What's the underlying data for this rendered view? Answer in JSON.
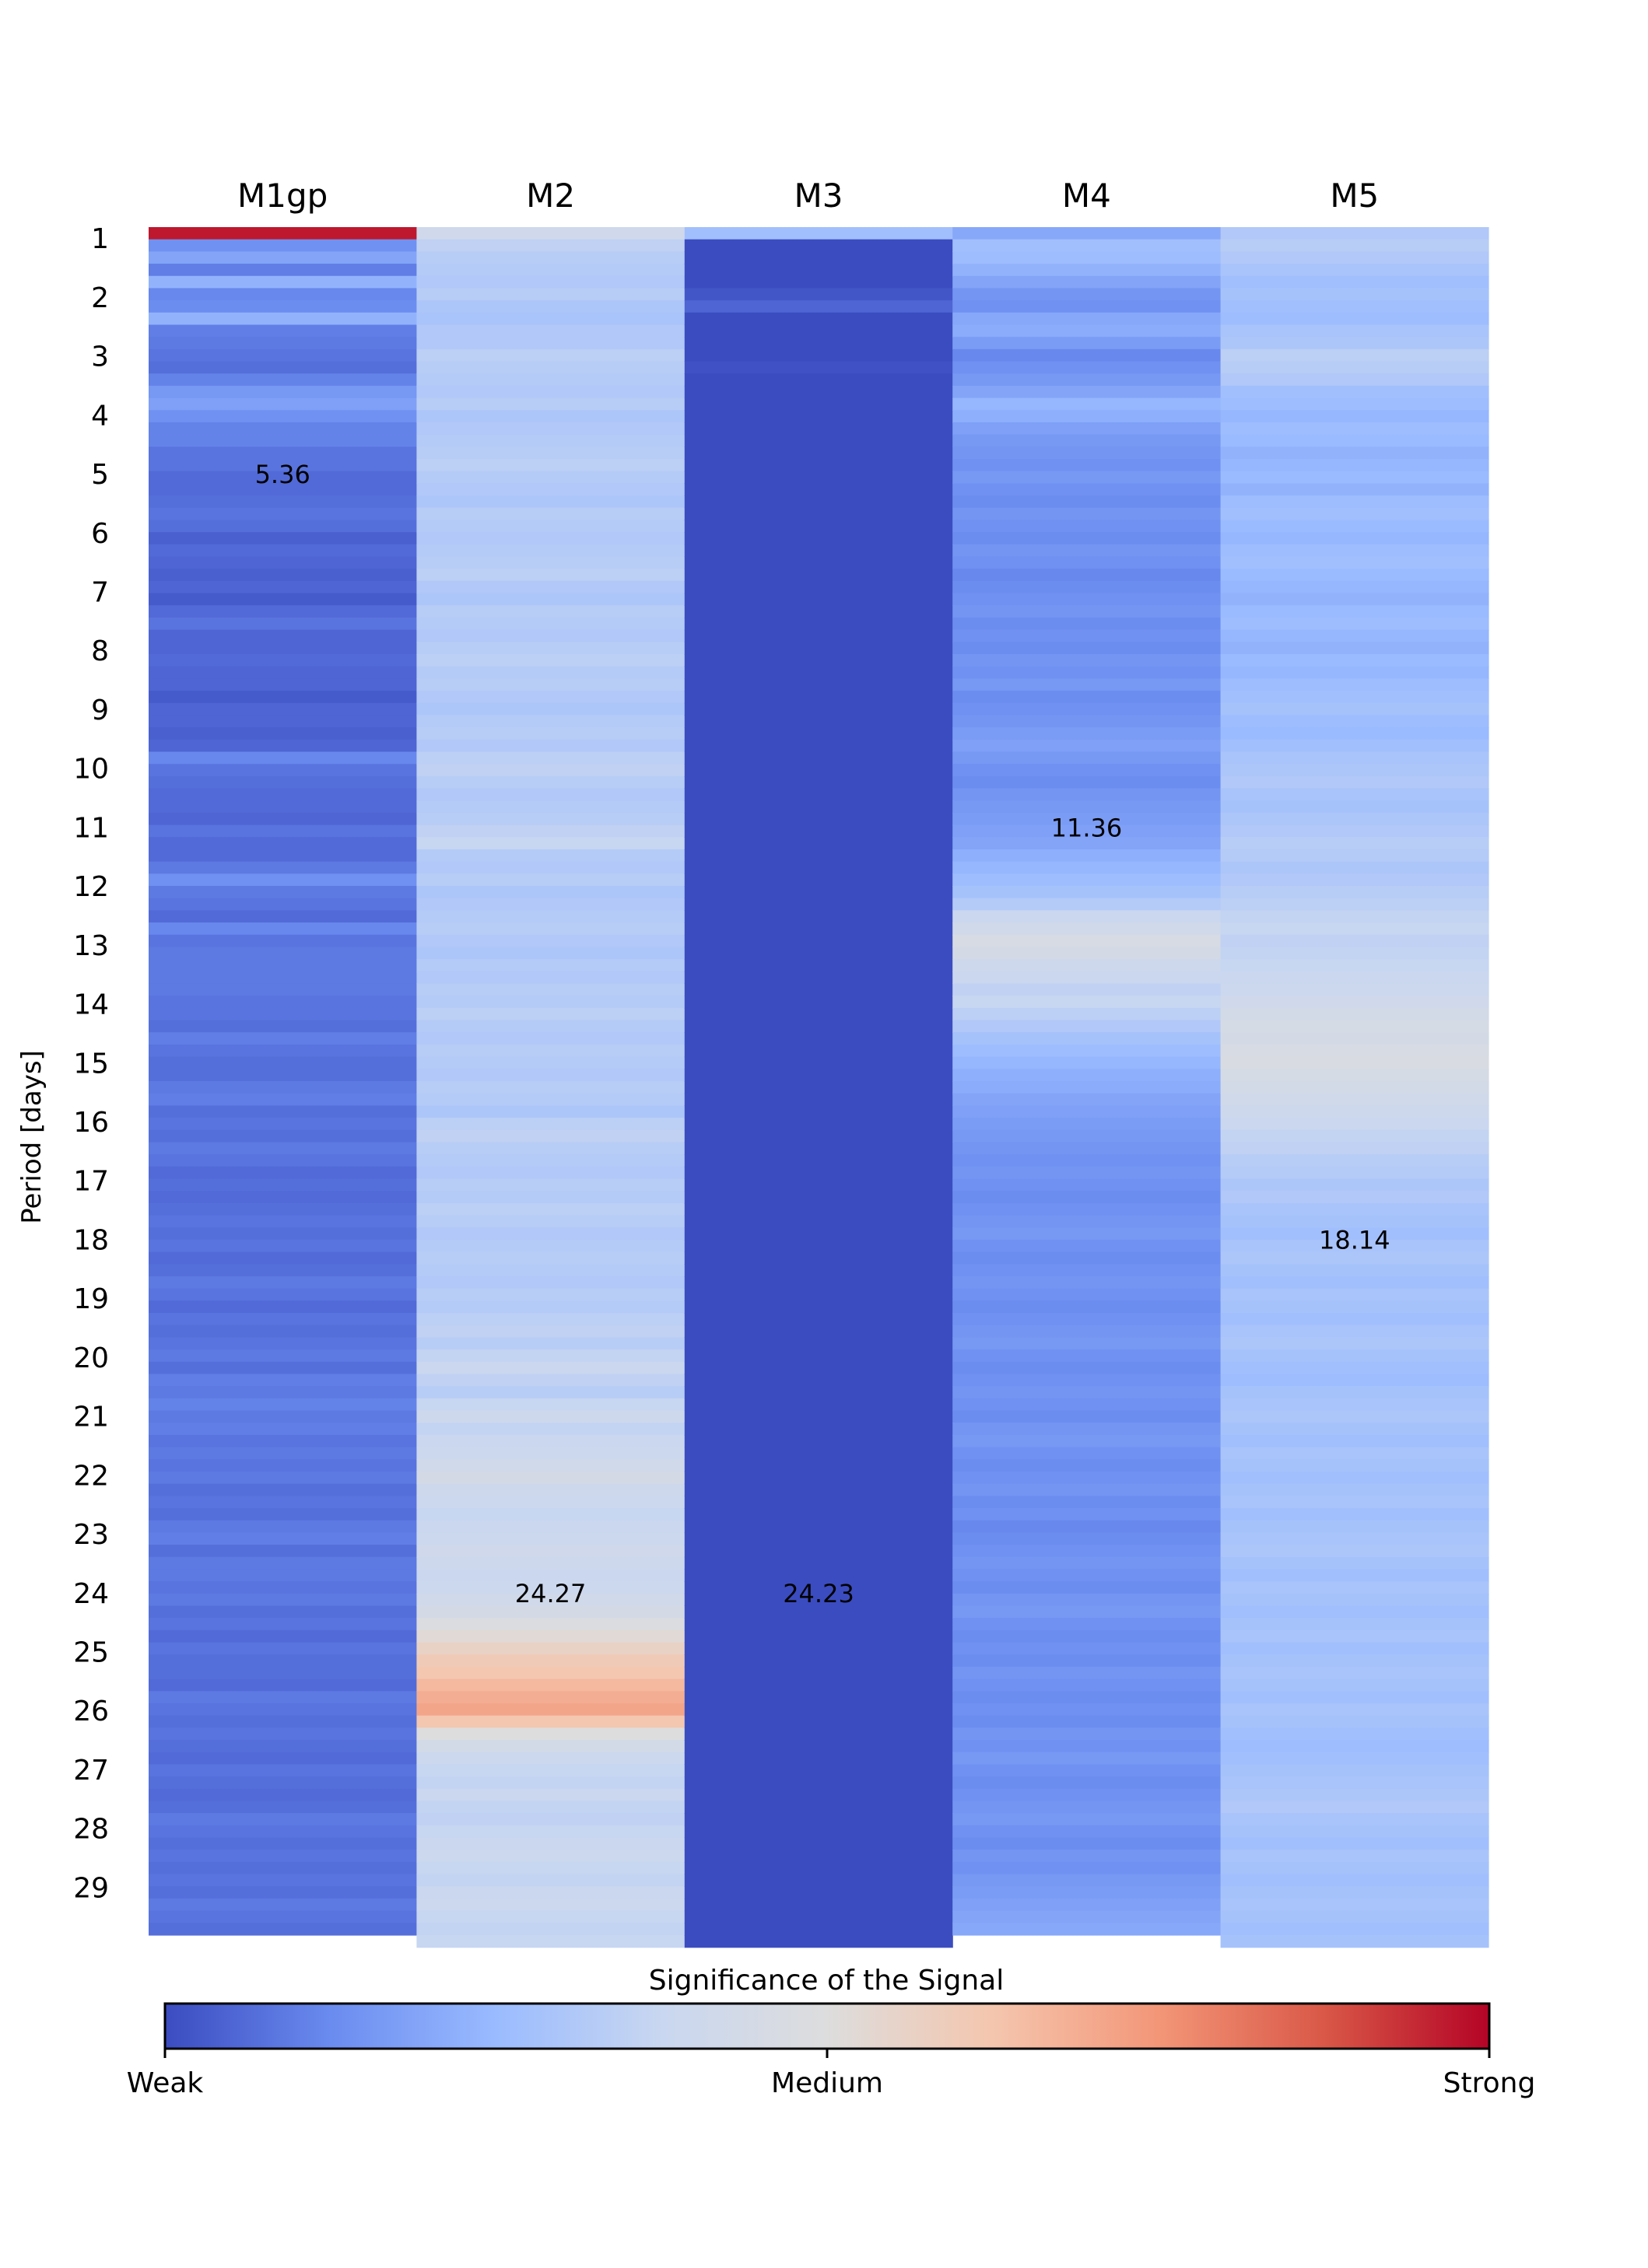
{
  "chart_data": {
    "type": "heatmap",
    "columns": [
      "M1gp",
      "M2",
      "M3",
      "M4",
      "M5"
    ],
    "ylabel": "Period [days]",
    "y_ticks": [
      "1",
      "2",
      "3",
      "4",
      "5",
      "6",
      "7",
      "8",
      "9",
      "10",
      "11",
      "12",
      "13",
      "14",
      "15",
      "16",
      "17",
      "18",
      "19",
      "20",
      "21",
      "22",
      "23",
      "24",
      "25",
      "26",
      "27",
      "28",
      "29"
    ],
    "y_range": [
      1,
      29
    ],
    "values": [
      [
        0.97,
        0.14,
        0.19,
        0.1,
        0.23,
        0.12,
        0.13,
        0.23,
        0.1,
        0.09,
        0.08,
        0.07,
        0.11,
        0.16,
        0.18,
        0.14,
        0.11,
        0.11,
        0.08,
        0.08,
        0.06,
        0.06,
        0.07,
        0.08,
        0.07,
        0.04,
        0.06,
        0.05,
        0.04,
        0.05,
        0.03,
        0.06,
        0.08,
        0.05,
        0.05,
        0.06,
        0.05,
        0.05,
        0.03,
        0.05,
        0.05,
        0.04,
        0.05,
        0.12,
        0.08,
        0.07,
        0.06,
        0.06,
        0.05,
        0.08,
        0.06,
        0.06,
        0.09,
        0.14,
        0.09,
        0.08,
        0.06,
        0.12,
        0.08,
        0.09,
        0.09,
        0.09,
        0.09,
        0.08,
        0.08,
        0.07,
        0.1,
        0.08,
        0.07,
        0.07,
        0.09,
        0.1,
        0.07,
        0.08,
        0.07,
        0.09,
        0.08,
        0.06,
        0.07,
        0.06,
        0.07,
        0.08,
        0.07,
        0.08,
        0.06,
        0.07,
        0.09,
        0.08,
        0.06,
        0.08,
        0.07,
        0.08,
        0.09,
        0.07,
        0.1,
        0.09,
        0.11,
        0.09,
        0.1,
        0.08,
        0.09,
        0.08,
        0.09,
        0.07,
        0.08,
        0.07,
        0.09,
        0.1,
        0.07,
        0.09,
        0.09,
        0.08,
        0.09,
        0.07,
        0.08,
        0.06,
        0.08,
        0.07,
        0.07,
        0.06,
        0.09,
        0.08,
        0.07,
        0.08,
        0.07,
        0.06,
        0.08,
        0.07,
        0.06,
        0.07,
        0.09,
        0.08,
        0.07,
        0.08,
        0.07,
        0.08,
        0.07,
        0.09,
        0.08,
        0.07
      ],
      [
        0.41,
        0.35,
        0.33,
        0.32,
        0.31,
        0.33,
        0.3,
        0.29,
        0.31,
        0.31,
        0.34,
        0.33,
        0.32,
        0.31,
        0.33,
        0.3,
        0.31,
        0.32,
        0.33,
        0.34,
        0.32,
        0.31,
        0.3,
        0.33,
        0.32,
        0.31,
        0.32,
        0.33,
        0.34,
        0.31,
        0.3,
        0.33,
        0.32,
        0.31,
        0.33,
        0.34,
        0.32,
        0.33,
        0.31,
        0.3,
        0.32,
        0.33,
        0.31,
        0.34,
        0.35,
        0.33,
        0.31,
        0.32,
        0.33,
        0.35,
        0.37,
        0.32,
        0.31,
        0.33,
        0.3,
        0.31,
        0.32,
        0.33,
        0.31,
        0.3,
        0.32,
        0.31,
        0.33,
        0.32,
        0.34,
        0.32,
        0.31,
        0.33,
        0.32,
        0.31,
        0.33,
        0.32,
        0.3,
        0.34,
        0.35,
        0.33,
        0.32,
        0.31,
        0.33,
        0.32,
        0.34,
        0.33,
        0.31,
        0.32,
        0.33,
        0.32,
        0.31,
        0.33,
        0.32,
        0.34,
        0.35,
        0.33,
        0.36,
        0.38,
        0.35,
        0.33,
        0.37,
        0.4,
        0.36,
        0.38,
        0.39,
        0.42,
        0.44,
        0.4,
        0.39,
        0.37,
        0.38,
        0.39,
        0.41,
        0.4,
        0.38,
        0.39,
        0.42,
        0.44,
        0.48,
        0.52,
        0.56,
        0.6,
        0.62,
        0.66,
        0.69,
        0.71,
        0.62,
        0.5,
        0.43,
        0.39,
        0.37,
        0.36,
        0.38,
        0.36,
        0.35,
        0.37,
        0.38,
        0.39,
        0.37,
        0.36,
        0.38,
        0.39,
        0.37,
        0.36,
        0.37
      ],
      [
        0.27,
        0.0,
        0.0,
        0.0,
        0.0,
        0.02,
        0.05,
        0.0,
        0.0,
        0.0,
        0.0,
        0.01,
        0.0,
        0.0,
        0.0,
        0.0,
        0.0,
        0.0,
        0.0,
        0.0,
        0.0,
        0.0,
        0.0,
        0.0,
        0.0,
        0.0,
        0.0,
        0.0,
        0.0,
        0.0,
        0.0,
        0.0,
        0.0,
        0.0,
        0.0,
        0.0,
        0.0,
        0.0,
        0.0,
        0.0,
        0.0,
        0.0,
        0.0,
        0.0,
        0.0,
        0.0,
        0.0,
        0.0,
        0.0,
        0.0,
        0.0,
        0.0,
        0.0,
        0.0,
        0.0,
        0.0,
        0.0,
        0.0,
        0.0,
        0.0,
        0.0,
        0.0,
        0.0,
        0.0,
        0.0,
        0.0,
        0.0,
        0.0,
        0.0,
        0.0,
        0.0,
        0.0,
        0.0,
        0.0,
        0.0,
        0.0,
        0.0,
        0.0,
        0.0,
        0.0,
        0.0,
        0.0,
        0.0,
        0.0,
        0.0,
        0.0,
        0.0,
        0.0,
        0.0,
        0.0,
        0.0,
        0.0,
        0.0,
        0.0,
        0.0,
        0.0,
        0.0,
        0.0,
        0.0,
        0.0,
        0.0,
        0.0,
        0.0,
        0.0,
        0.0,
        0.0,
        0.0,
        0.0,
        0.0,
        0.0,
        0.0,
        0.0,
        0.0,
        0.0,
        0.0,
        0.0,
        0.0,
        0.0,
        0.0,
        0.0,
        0.0,
        0.0,
        0.0,
        0.0,
        0.0,
        0.0,
        0.0,
        0.0,
        0.0,
        0.0,
        0.0,
        0.0,
        0.0,
        0.0,
        0.0,
        0.0,
        0.0,
        0.0,
        0.0,
        0.0,
        0.0
      ],
      [
        0.2,
        0.27,
        0.26,
        0.23,
        0.19,
        0.15,
        0.14,
        0.2,
        0.21,
        0.17,
        0.12,
        0.14,
        0.16,
        0.19,
        0.24,
        0.22,
        0.18,
        0.16,
        0.15,
        0.14,
        0.16,
        0.14,
        0.13,
        0.15,
        0.14,
        0.13,
        0.15,
        0.14,
        0.12,
        0.13,
        0.14,
        0.15,
        0.13,
        0.14,
        0.13,
        0.15,
        0.14,
        0.16,
        0.13,
        0.14,
        0.15,
        0.17,
        0.18,
        0.16,
        0.14,
        0.13,
        0.15,
        0.16,
        0.17,
        0.18,
        0.19,
        0.22,
        0.24,
        0.26,
        0.28,
        0.32,
        0.38,
        0.42,
        0.46,
        0.44,
        0.4,
        0.38,
        0.35,
        0.37,
        0.34,
        0.31,
        0.28,
        0.26,
        0.24,
        0.22,
        0.21,
        0.19,
        0.18,
        0.17,
        0.16,
        0.15,
        0.14,
        0.15,
        0.14,
        0.13,
        0.14,
        0.15,
        0.16,
        0.14,
        0.13,
        0.14,
        0.15,
        0.14,
        0.13,
        0.14,
        0.15,
        0.16,
        0.14,
        0.13,
        0.14,
        0.15,
        0.14,
        0.13,
        0.15,
        0.16,
        0.14,
        0.13,
        0.14,
        0.15,
        0.13,
        0.14,
        0.12,
        0.13,
        0.14,
        0.15,
        0.14,
        0.13,
        0.15,
        0.16,
        0.14,
        0.13,
        0.14,
        0.13,
        0.15,
        0.14,
        0.13,
        0.14,
        0.13,
        0.15,
        0.14,
        0.16,
        0.14,
        0.13,
        0.14,
        0.15,
        0.16,
        0.14,
        0.13,
        0.15,
        0.14,
        0.16,
        0.17,
        0.18,
        0.19,
        0.2
      ],
      [
        0.31,
        0.33,
        0.31,
        0.29,
        0.27,
        0.28,
        0.27,
        0.26,
        0.29,
        0.3,
        0.34,
        0.33,
        0.31,
        0.27,
        0.26,
        0.24,
        0.26,
        0.25,
        0.23,
        0.24,
        0.25,
        0.23,
        0.26,
        0.27,
        0.25,
        0.24,
        0.26,
        0.27,
        0.25,
        0.24,
        0.23,
        0.25,
        0.26,
        0.24,
        0.23,
        0.25,
        0.24,
        0.26,
        0.27,
        0.28,
        0.26,
        0.25,
        0.27,
        0.29,
        0.3,
        0.31,
        0.29,
        0.28,
        0.3,
        0.31,
        0.33,
        0.32,
        0.3,
        0.31,
        0.33,
        0.34,
        0.36,
        0.37,
        0.35,
        0.36,
        0.37,
        0.38,
        0.39,
        0.41,
        0.43,
        0.45,
        0.44,
        0.46,
        0.47,
        0.45,
        0.43,
        0.42,
        0.4,
        0.38,
        0.36,
        0.35,
        0.33,
        0.32,
        0.3,
        0.31,
        0.29,
        0.28,
        0.27,
        0.29,
        0.3,
        0.28,
        0.27,
        0.29,
        0.28,
        0.27,
        0.29,
        0.3,
        0.28,
        0.27,
        0.26,
        0.28,
        0.29,
        0.3,
        0.28,
        0.27,
        0.29,
        0.28,
        0.27,
        0.28,
        0.29,
        0.27,
        0.28,
        0.29,
        0.3,
        0.28,
        0.27,
        0.29,
        0.28,
        0.27,
        0.28,
        0.29,
        0.27,
        0.28,
        0.29,
        0.28,
        0.27,
        0.29,
        0.28,
        0.27,
        0.26,
        0.27,
        0.28,
        0.29,
        0.3,
        0.31,
        0.29,
        0.28,
        0.27,
        0.29,
        0.28,
        0.27,
        0.28,
        0.29,
        0.28,
        0.27,
        0.28
      ]
    ],
    "annotations": [
      {
        "column": 0,
        "label": "5.36",
        "period": 5
      },
      {
        "column": 1,
        "label": "24.27",
        "period": 24
      },
      {
        "column": 2,
        "label": "24.23",
        "period": 24
      },
      {
        "column": 3,
        "label": "11.36",
        "period": 11
      },
      {
        "column": 4,
        "label": "18.14",
        "period": 18
      }
    ],
    "colorbar": {
      "title": "Significance of the Signal",
      "tick_labels": [
        "Weak",
        "Medium",
        "Strong"
      ],
      "colormap": "coolwarm",
      "stops": [
        "#3b4cc0",
        "#6a8bef",
        "#9abbff",
        "#c9d7f0",
        "#dddddd",
        "#f4c6ae",
        "#f39678",
        "#d95847",
        "#b40426"
      ]
    },
    "grid": false
  }
}
